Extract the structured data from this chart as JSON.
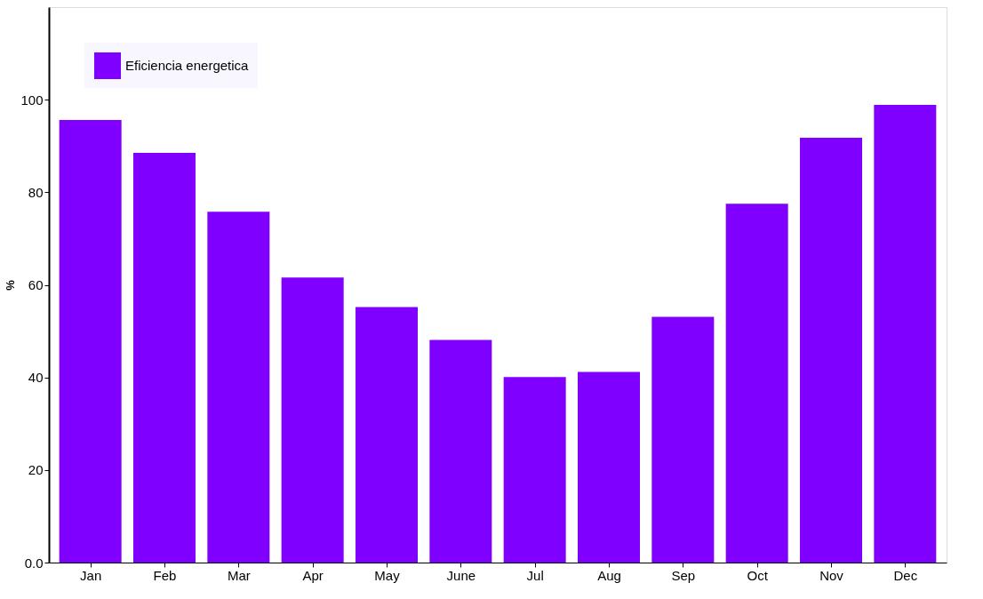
{
  "chart_data": {
    "type": "bar",
    "ylabel": "%",
    "categories": [
      "Jan",
      "Feb",
      "Mar",
      "Apr",
      "May",
      "June",
      "Jul",
      "Aug",
      "Sep",
      "Oct",
      "Nov",
      "Dec"
    ],
    "series": [
      {
        "name": "Eficiencia energetica",
        "color": "#8000ff",
        "values": [
          95.6,
          88.5,
          75.8,
          61.6,
          55.2,
          48.1,
          40.1,
          41.2,
          53.1,
          77.5,
          91.8,
          98.9
        ]
      }
    ],
    "ylim": [
      0,
      120
    ],
    "yticks": [
      {
        "value": 0,
        "label": "0.0"
      },
      20,
      40,
      60,
      80,
      100
    ],
    "grid": false,
    "legend": "top left"
  }
}
